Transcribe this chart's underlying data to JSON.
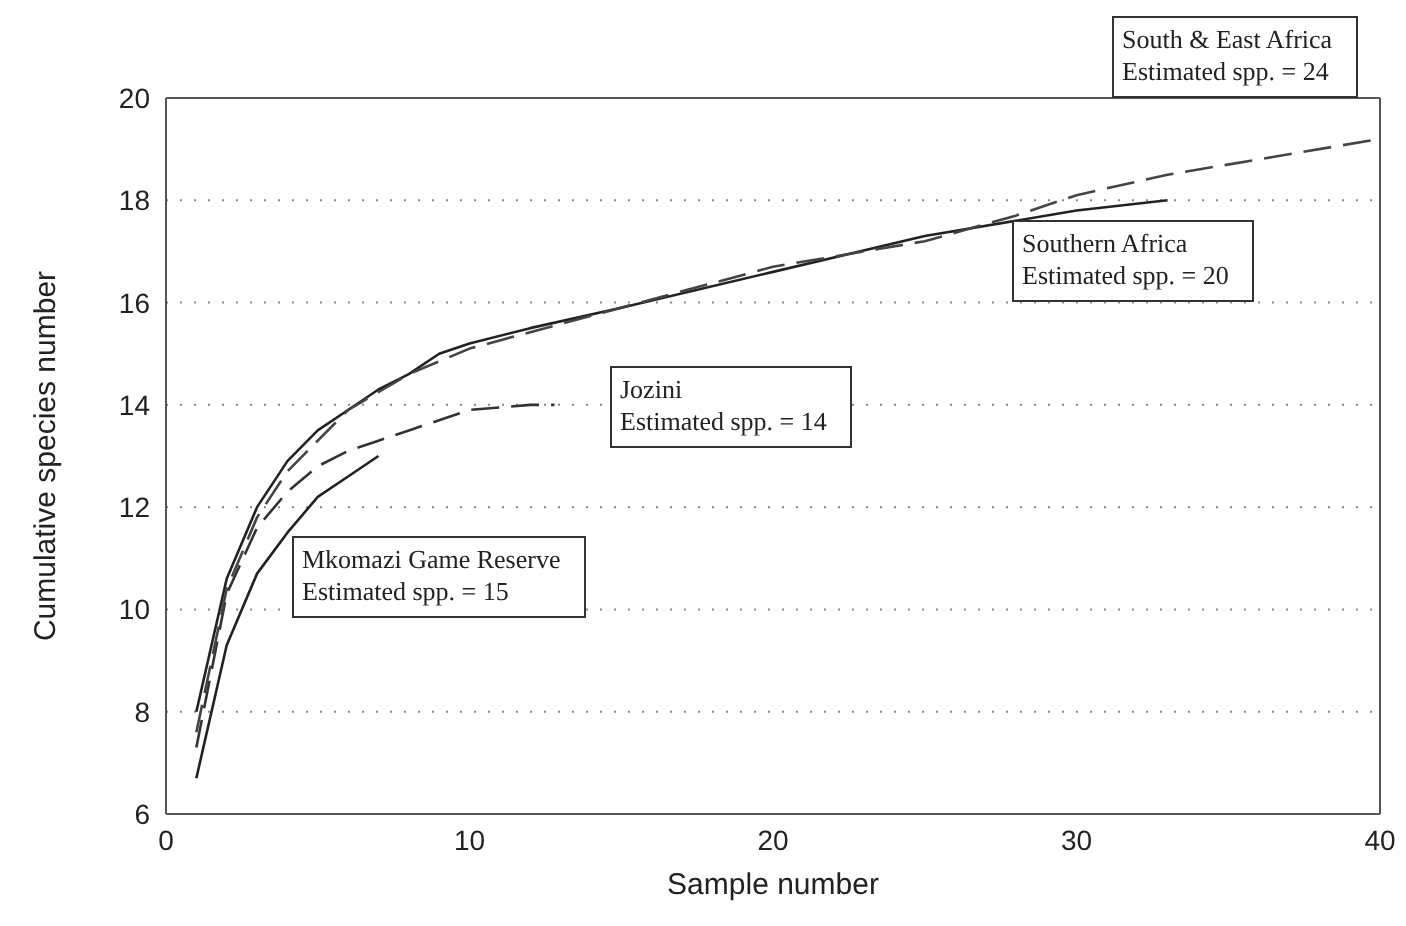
{
  "chart_data": {
    "type": "line",
    "xlabel": "Sample number",
    "ylabel": "Cumulative species number",
    "xlim": [
      0,
      40
    ],
    "xticks": [
      0,
      10,
      20,
      30,
      40
    ],
    "ylim": [
      6,
      20
    ],
    "yticks": [
      6,
      8,
      10,
      12,
      14,
      16,
      18,
      20
    ],
    "grid": "y",
    "marker": "none",
    "series": [
      {
        "color": "#222222",
        "line_style": "solid",
        "x": [
          1,
          2,
          3,
          4,
          5,
          6,
          7
        ],
        "values": [
          6.7,
          9.3,
          10.7,
          11.5,
          12.2,
          12.6,
          13.0
        ]
      },
      {
        "color": "#333333",
        "line_style": "dashed",
        "x": [
          1,
          2,
          3,
          4,
          5,
          6,
          7,
          8,
          9,
          10,
          11,
          12,
          12.8
        ],
        "values": [
          7.3,
          10.3,
          11.6,
          12.3,
          12.8,
          13.1,
          13.3,
          13.5,
          13.7,
          13.9,
          13.95,
          14.0,
          14.0
        ]
      },
      {
        "color": "#222222",
        "line_style": "solid",
        "x": [
          1,
          2,
          3,
          4,
          5,
          6,
          7,
          8,
          9,
          10,
          12,
          15,
          20,
          25,
          30,
          33
        ],
        "values": [
          8.0,
          10.6,
          12.0,
          12.9,
          13.5,
          13.9,
          14.3,
          14.6,
          15.0,
          15.2,
          15.5,
          15.9,
          16.6,
          17.3,
          17.8,
          18.0
        ]
      },
      {
        "color": "#444444",
        "line_style": "dashed",
        "x": [
          1,
          2,
          3,
          4,
          6,
          8,
          10,
          15,
          20,
          25,
          28,
          30,
          33,
          36,
          40
        ],
        "values": [
          7.6,
          10.4,
          11.8,
          12.7,
          13.9,
          14.6,
          15.1,
          15.9,
          16.7,
          17.2,
          17.7,
          18.1,
          18.5,
          18.8,
          19.2
        ]
      }
    ],
    "annotations": [
      "Mkomazi Game Reserve\nEstimated spp. = 15",
      "Jozini\nEstimated spp. = 14",
      "Southern Africa\nEstimated spp. = 20",
      "South & East Africa\nEstimated spp. = 24"
    ]
  }
}
